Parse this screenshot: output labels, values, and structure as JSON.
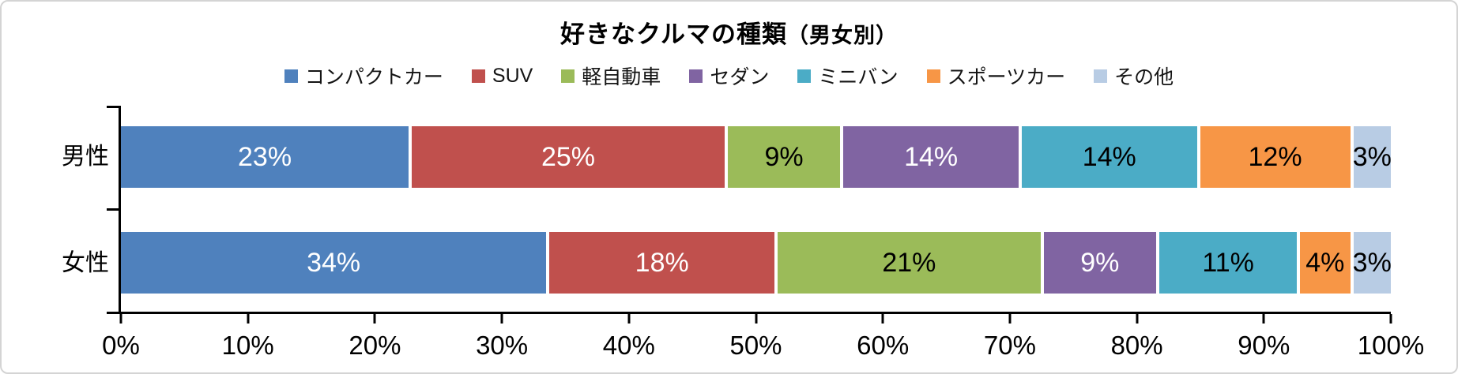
{
  "title": {
    "main": "好きなクルマの種類",
    "suffix": "（男女別）"
  },
  "chart_data": {
    "type": "bar",
    "orientation": "horizontal",
    "stacked": true,
    "title": "好きなクルマの種類（男女別）",
    "legend_position": "top",
    "grid": false,
    "value_suffix": "%",
    "categories": [
      "男性",
      "女性"
    ],
    "series": [
      {
        "name": "コンパクトカー",
        "color": "#4F81BD",
        "label_color": "#FFFFFF",
        "values": [
          23,
          34
        ]
      },
      {
        "name": "SUV",
        "color": "#C0504D",
        "label_color": "#FFFFFF",
        "values": [
          25,
          18
        ]
      },
      {
        "name": "軽自動車",
        "color": "#9BBB59",
        "label_color": "#000000",
        "values": [
          9,
          21
        ]
      },
      {
        "name": "セダン",
        "color": "#8064A2",
        "label_color": "#FFFFFF",
        "values": [
          14,
          9
        ]
      },
      {
        "name": "ミニバン",
        "color": "#4BACC6",
        "label_color": "#000000",
        "values": [
          14,
          11
        ]
      },
      {
        "name": "スポーツカー",
        "color": "#F79646",
        "label_color": "#000000",
        "values": [
          12,
          4
        ]
      },
      {
        "name": "その他",
        "color": "#B8CCE4",
        "label_color": "#000000",
        "values": [
          3,
          3
        ]
      }
    ],
    "x_axis": {
      "min": 0,
      "max": 100,
      "tick_labels": [
        "0%",
        "10%",
        "20%",
        "30%",
        "40%",
        "50%",
        "60%",
        "70%",
        "80%",
        "90%",
        "100%"
      ]
    },
    "axis_color": "#000000",
    "frame_border_color": "#D4D4D4"
  }
}
